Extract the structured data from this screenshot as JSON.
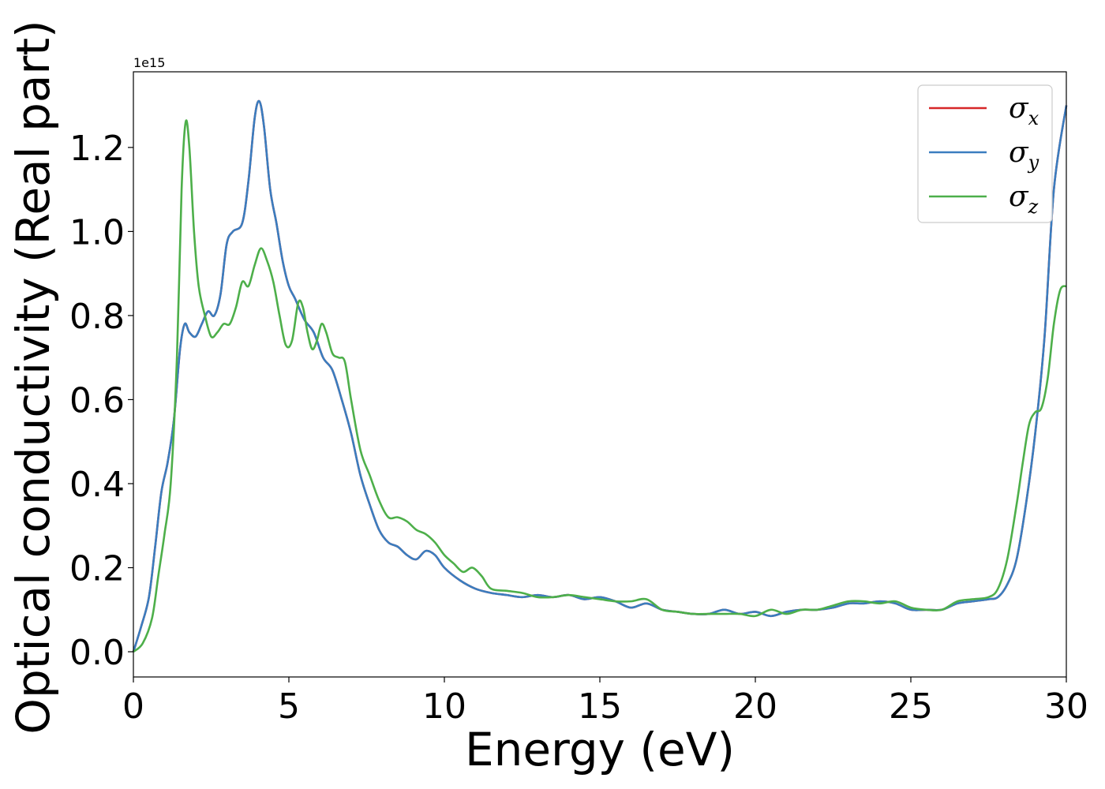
{
  "chart_data": {
    "type": "line",
    "xlabel": "Energy (eV)",
    "ylabel": "Optical conductivity (Real part)",
    "y_offset_label": "1e15",
    "y_multiplier": 1000000000000000.0,
    "xlim": [
      0,
      30
    ],
    "ylim": [
      -0.06,
      1.38
    ],
    "x_ticks": [
      0,
      5,
      10,
      15,
      20,
      25,
      30
    ],
    "x_tick_labels": [
      "0",
      "5",
      "10",
      "15",
      "20",
      "25",
      "30"
    ],
    "y_ticks": [
      0.0,
      0.2,
      0.4,
      0.6,
      0.8,
      1.0,
      1.2
    ],
    "y_tick_labels": [
      "0.0",
      "0.2",
      "0.4",
      "0.6",
      "0.8",
      "1.0",
      "1.2"
    ],
    "grid": false,
    "legend_position": "top-right",
    "series": [
      {
        "name": "σx",
        "symbol": "σ",
        "subscript": "x",
        "color": "#d62728",
        "x": [
          0,
          0.25,
          0.5,
          0.7,
          0.9,
          1.1,
          1.3,
          1.5,
          1.65,
          1.8,
          2.0,
          2.2,
          2.4,
          2.6,
          2.8,
          3.0,
          3.2,
          3.5,
          3.7,
          3.9,
          4.05,
          4.2,
          4.4,
          4.6,
          4.8,
          5.0,
          5.2,
          5.5,
          5.8,
          6.1,
          6.4,
          6.7,
          7.0,
          7.3,
          7.6,
          7.9,
          8.2,
          8.5,
          8.8,
          9.1,
          9.4,
          9.7,
          10.0,
          10.5,
          11.0,
          11.5,
          12.0,
          12.5,
          13.0,
          13.5,
          14.0,
          14.5,
          15.0,
          15.5,
          16.0,
          16.5,
          17.0,
          17.5,
          18.0,
          18.5,
          19.0,
          19.5,
          20.0,
          20.5,
          21.0,
          21.5,
          22.0,
          22.5,
          23.0,
          23.5,
          24.0,
          24.5,
          25.0,
          25.5,
          26.0,
          26.5,
          27.0,
          27.5,
          27.8,
          28.1,
          28.4,
          28.7,
          29.0,
          29.3,
          29.6,
          30.0
        ],
        "y": [
          0.0,
          0.06,
          0.13,
          0.25,
          0.38,
          0.45,
          0.55,
          0.72,
          0.78,
          0.76,
          0.75,
          0.78,
          0.81,
          0.8,
          0.85,
          0.97,
          1.0,
          1.02,
          1.12,
          1.27,
          1.31,
          1.25,
          1.1,
          1.02,
          0.93,
          0.87,
          0.84,
          0.79,
          0.76,
          0.7,
          0.67,
          0.6,
          0.52,
          0.42,
          0.35,
          0.29,
          0.26,
          0.25,
          0.23,
          0.22,
          0.24,
          0.23,
          0.2,
          0.17,
          0.15,
          0.14,
          0.135,
          0.13,
          0.135,
          0.13,
          0.135,
          0.125,
          0.13,
          0.12,
          0.105,
          0.115,
          0.1,
          0.095,
          0.09,
          0.09,
          0.1,
          0.09,
          0.095,
          0.085,
          0.095,
          0.1,
          0.1,
          0.105,
          0.115,
          0.115,
          0.12,
          0.115,
          0.1,
          0.1,
          0.1,
          0.115,
          0.12,
          0.125,
          0.13,
          0.16,
          0.22,
          0.35,
          0.52,
          0.75,
          1.1,
          1.3
        ]
      },
      {
        "name": "σy",
        "symbol": "σ",
        "subscript": "y",
        "color": "#3a7dbf",
        "x": [
          0,
          0.25,
          0.5,
          0.7,
          0.9,
          1.1,
          1.3,
          1.5,
          1.65,
          1.8,
          2.0,
          2.2,
          2.4,
          2.6,
          2.8,
          3.0,
          3.2,
          3.5,
          3.7,
          3.9,
          4.05,
          4.2,
          4.4,
          4.6,
          4.8,
          5.0,
          5.2,
          5.5,
          5.8,
          6.1,
          6.4,
          6.7,
          7.0,
          7.3,
          7.6,
          7.9,
          8.2,
          8.5,
          8.8,
          9.1,
          9.4,
          9.7,
          10.0,
          10.5,
          11.0,
          11.5,
          12.0,
          12.5,
          13.0,
          13.5,
          14.0,
          14.5,
          15.0,
          15.5,
          16.0,
          16.5,
          17.0,
          17.5,
          18.0,
          18.5,
          19.0,
          19.5,
          20.0,
          20.5,
          21.0,
          21.5,
          22.0,
          22.5,
          23.0,
          23.5,
          24.0,
          24.5,
          25.0,
          25.5,
          26.0,
          26.5,
          27.0,
          27.5,
          27.8,
          28.1,
          28.4,
          28.7,
          29.0,
          29.3,
          29.6,
          30.0
        ],
        "y": [
          0.0,
          0.06,
          0.13,
          0.25,
          0.38,
          0.45,
          0.55,
          0.72,
          0.78,
          0.76,
          0.75,
          0.78,
          0.81,
          0.8,
          0.85,
          0.97,
          1.0,
          1.02,
          1.12,
          1.27,
          1.31,
          1.25,
          1.1,
          1.02,
          0.93,
          0.87,
          0.84,
          0.79,
          0.76,
          0.7,
          0.67,
          0.6,
          0.52,
          0.42,
          0.35,
          0.29,
          0.26,
          0.25,
          0.23,
          0.22,
          0.24,
          0.23,
          0.2,
          0.17,
          0.15,
          0.14,
          0.135,
          0.13,
          0.135,
          0.13,
          0.135,
          0.125,
          0.13,
          0.12,
          0.105,
          0.115,
          0.1,
          0.095,
          0.09,
          0.09,
          0.1,
          0.09,
          0.095,
          0.085,
          0.095,
          0.1,
          0.1,
          0.105,
          0.115,
          0.115,
          0.12,
          0.115,
          0.1,
          0.1,
          0.1,
          0.115,
          0.12,
          0.125,
          0.13,
          0.16,
          0.22,
          0.35,
          0.52,
          0.75,
          1.1,
          1.3
        ]
      },
      {
        "name": "σz",
        "symbol": "σ",
        "subscript": "z",
        "color": "#4daf4a",
        "x": [
          0,
          0.3,
          0.6,
          0.8,
          1.0,
          1.2,
          1.4,
          1.55,
          1.68,
          1.8,
          1.95,
          2.1,
          2.3,
          2.5,
          2.7,
          2.9,
          3.1,
          3.3,
          3.5,
          3.7,
          3.9,
          4.1,
          4.3,
          4.5,
          4.7,
          4.9,
          5.1,
          5.3,
          5.45,
          5.6,
          5.75,
          5.9,
          6.05,
          6.2,
          6.4,
          6.6,
          6.8,
          7.0,
          7.3,
          7.6,
          7.9,
          8.2,
          8.5,
          8.8,
          9.1,
          9.4,
          9.7,
          10.0,
          10.3,
          10.6,
          10.9,
          11.2,
          11.5,
          12.0,
          12.5,
          13.0,
          13.5,
          14.0,
          14.5,
          15.0,
          15.5,
          16.0,
          16.5,
          17.0,
          17.5,
          18.0,
          18.5,
          19.0,
          19.5,
          20.0,
          20.5,
          21.0,
          21.5,
          22.0,
          22.5,
          23.0,
          23.5,
          24.0,
          24.5,
          25.0,
          25.5,
          26.0,
          26.5,
          27.0,
          27.5,
          27.8,
          28.1,
          28.4,
          28.6,
          28.8,
          29.0,
          29.2,
          29.4,
          29.6,
          29.8,
          30.0
        ],
        "y": [
          0.0,
          0.02,
          0.08,
          0.18,
          0.28,
          0.4,
          0.7,
          1.1,
          1.26,
          1.2,
          1.0,
          0.87,
          0.8,
          0.75,
          0.76,
          0.78,
          0.78,
          0.82,
          0.88,
          0.87,
          0.92,
          0.96,
          0.93,
          0.88,
          0.8,
          0.73,
          0.74,
          0.83,
          0.82,
          0.76,
          0.72,
          0.74,
          0.78,
          0.76,
          0.71,
          0.7,
          0.69,
          0.6,
          0.48,
          0.42,
          0.36,
          0.32,
          0.32,
          0.31,
          0.29,
          0.28,
          0.26,
          0.23,
          0.21,
          0.19,
          0.2,
          0.18,
          0.15,
          0.145,
          0.14,
          0.13,
          0.13,
          0.135,
          0.13,
          0.125,
          0.12,
          0.12,
          0.125,
          0.1,
          0.095,
          0.09,
          0.09,
          0.09,
          0.09,
          0.085,
          0.1,
          0.09,
          0.1,
          0.1,
          0.11,
          0.12,
          0.12,
          0.115,
          0.12,
          0.105,
          0.1,
          0.1,
          0.12,
          0.125,
          0.13,
          0.15,
          0.22,
          0.35,
          0.45,
          0.54,
          0.57,
          0.58,
          0.65,
          0.78,
          0.86,
          0.87
        ]
      }
    ]
  }
}
